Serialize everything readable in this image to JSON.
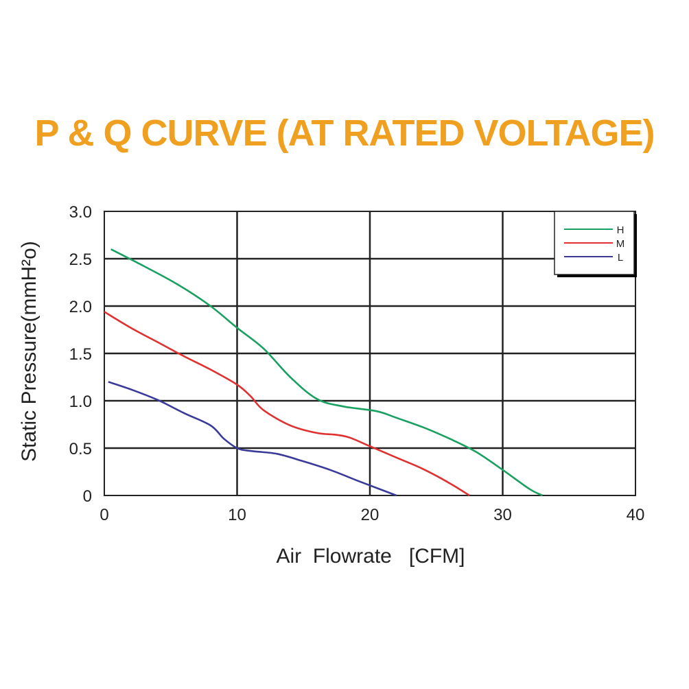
{
  "title": "P & Q CURVE (AT RATED VOLTAGE)",
  "chart_data": {
    "type": "line",
    "title": "P & Q CURVE (AT RATED VOLTAGE)",
    "xlabel": "Air  Flowrate   [CFM]",
    "ylabel": "Static Pressure(mmH²o)",
    "xlim": [
      0,
      40
    ],
    "ylim": [
      0,
      3.0
    ],
    "x_ticks": [
      "0",
      "10",
      "20",
      "30",
      "40"
    ],
    "y_ticks": [
      "0",
      "0.5",
      "1.0",
      "1.5",
      "2.0",
      "2.5",
      "3.0"
    ],
    "grid": true,
    "legend_position": "top-right",
    "series": [
      {
        "name": "H",
        "color": "#1aa060",
        "points": [
          [
            0.5,
            2.6
          ],
          [
            3,
            2.42
          ],
          [
            5.5,
            2.23
          ],
          [
            8,
            2.0
          ],
          [
            10,
            1.77
          ],
          [
            12,
            1.55
          ],
          [
            14,
            1.25
          ],
          [
            16,
            1.02
          ],
          [
            18,
            0.94
          ],
          [
            20.5,
            0.89
          ],
          [
            22,
            0.82
          ],
          [
            24,
            0.72
          ],
          [
            26,
            0.6
          ],
          [
            28,
            0.46
          ],
          [
            30,
            0.27
          ],
          [
            32,
            0.07
          ],
          [
            33,
            0.0
          ]
        ]
      },
      {
        "name": "M",
        "color": "#e03030",
        "points": [
          [
            0,
            1.94
          ],
          [
            2,
            1.77
          ],
          [
            4,
            1.62
          ],
          [
            6,
            1.47
          ],
          [
            8,
            1.33
          ],
          [
            10,
            1.17
          ],
          [
            11,
            1.05
          ],
          [
            12,
            0.9
          ],
          [
            14,
            0.74
          ],
          [
            16,
            0.66
          ],
          [
            17.5,
            0.64
          ],
          [
            18.5,
            0.61
          ],
          [
            20,
            0.52
          ],
          [
            22,
            0.4
          ],
          [
            24,
            0.28
          ],
          [
            26,
            0.13
          ],
          [
            27.5,
            0.0
          ]
        ]
      },
      {
        "name": "L",
        "color": "#3a3a9a",
        "points": [
          [
            0.3,
            1.2
          ],
          [
            2,
            1.12
          ],
          [
            4,
            1.01
          ],
          [
            6,
            0.87
          ],
          [
            8,
            0.74
          ],
          [
            9,
            0.6
          ],
          [
            10,
            0.5
          ],
          [
            11,
            0.47
          ],
          [
            13,
            0.44
          ],
          [
            15,
            0.36
          ],
          [
            17,
            0.27
          ],
          [
            19,
            0.16
          ],
          [
            20.5,
            0.08
          ],
          [
            22,
            0.0
          ]
        ]
      }
    ]
  }
}
